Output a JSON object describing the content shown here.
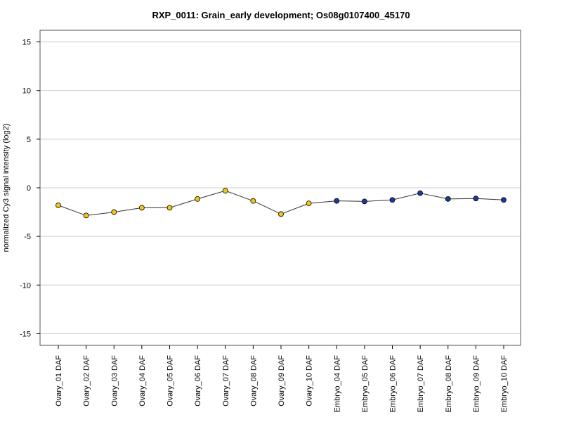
{
  "chart_data": {
    "type": "line",
    "title": "RXP_0011: Grain_early development; Os08g0107400_45170",
    "xlabel": "",
    "ylabel": "normalized Cy3 signal intensity (log2)",
    "ylim": [
      -16.2,
      16.2
    ],
    "yticks": [
      -15,
      -10,
      -5,
      0,
      5,
      10,
      15
    ],
    "grid": true,
    "categories": [
      "Ovary_01 DAF",
      "Ovary_02 DAF",
      "Ovary_03 DAF",
      "Ovary_04 DAF",
      "Ovary_05 DAF",
      "Ovary_06 DAF",
      "Ovary_07 DAF",
      "Ovary_08 DAF",
      "Ovary_09 DAF",
      "Ovary_10 DAF",
      "Embryo_04 DAF",
      "Embryo_05 DAF",
      "Embryo_06 DAF",
      "Embryo_07 DAF",
      "Embryo_08 DAF",
      "Embryo_09 DAF",
      "Embryo_10 DAF"
    ],
    "values": [
      -1.8,
      -2.85,
      -2.5,
      -2.05,
      -2.05,
      -1.15,
      -0.3,
      -1.35,
      -2.7,
      -1.6,
      -1.35,
      -1.4,
      -1.25,
      -0.55,
      -1.15,
      -1.1,
      -1.25
    ],
    "errors": [
      0.1,
      0.2,
      0.15,
      0.3,
      0.1,
      0.15,
      0.3,
      0.15,
      0.15,
      0.15,
      0.1,
      0.1,
      0.1,
      0.25,
      0.1,
      0.1,
      0.1
    ],
    "point_colors": [
      "#f5c518",
      "#f5c518",
      "#f5c518",
      "#f5c518",
      "#f5c518",
      "#f5c518",
      "#f5c518",
      "#f5c518",
      "#f5c518",
      "#f5c518",
      "#1a3a9c",
      "#1a3a9c",
      "#1a3a9c",
      "#1a3a9c",
      "#1a3a9c",
      "#1a3a9c",
      "#1a3a9c"
    ]
  }
}
